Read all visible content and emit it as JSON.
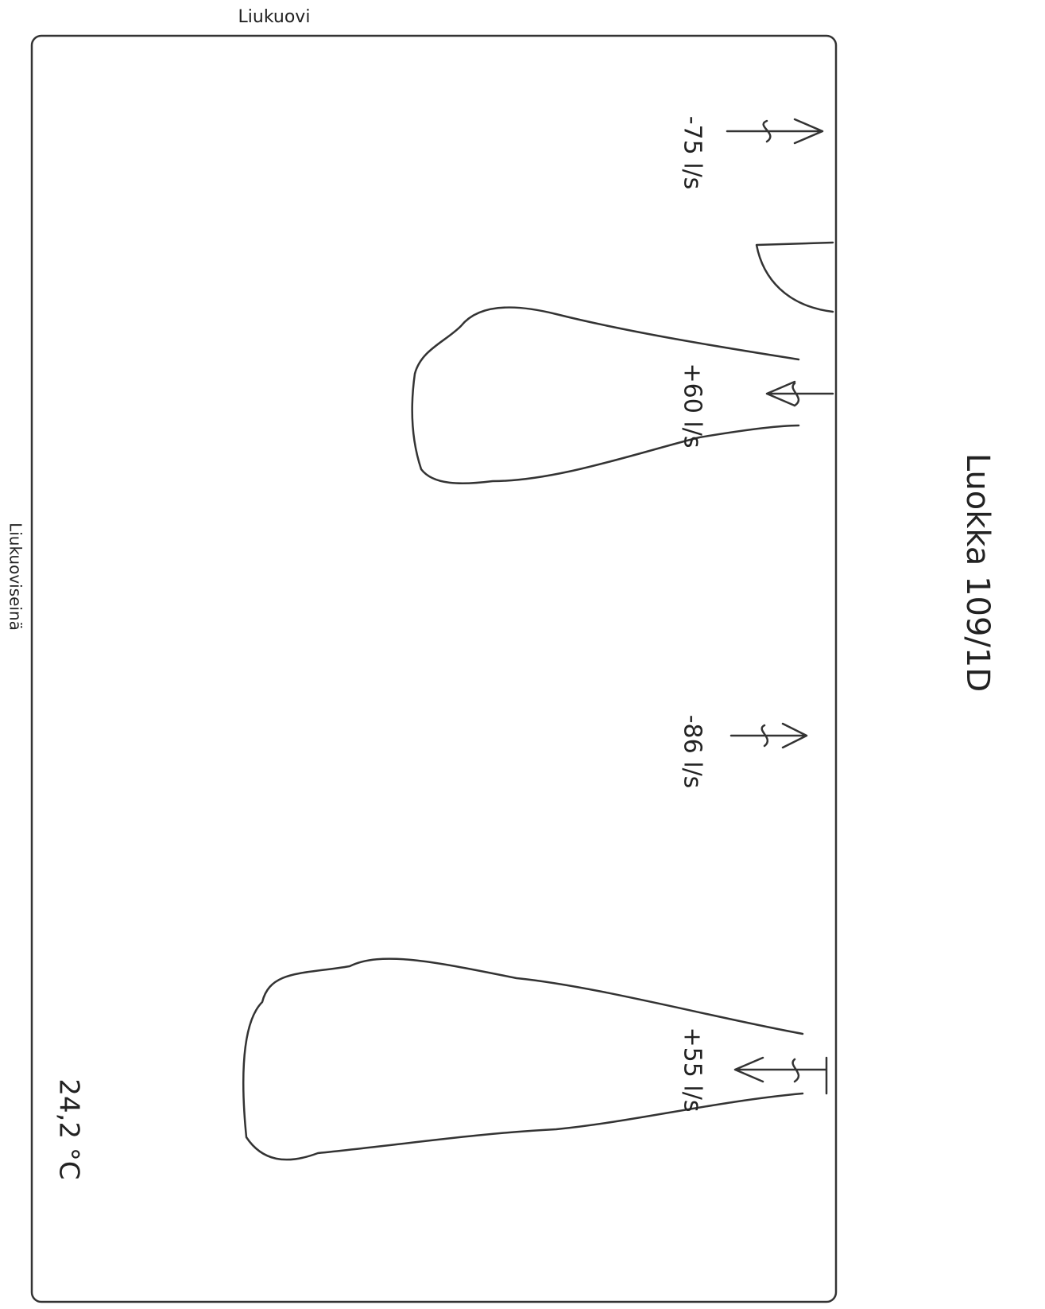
{
  "top_label": "Liukuovi",
  "left_label": "Liukuoviseinä",
  "room_title": "Luokka 109/1D",
  "temperature": "24,2 °C",
  "airflows": [
    {
      "label": "-75 l/s"
    },
    {
      "label": "+60 l/s"
    },
    {
      "label": "-86 l/s"
    },
    {
      "label": "+55 l/s"
    }
  ]
}
